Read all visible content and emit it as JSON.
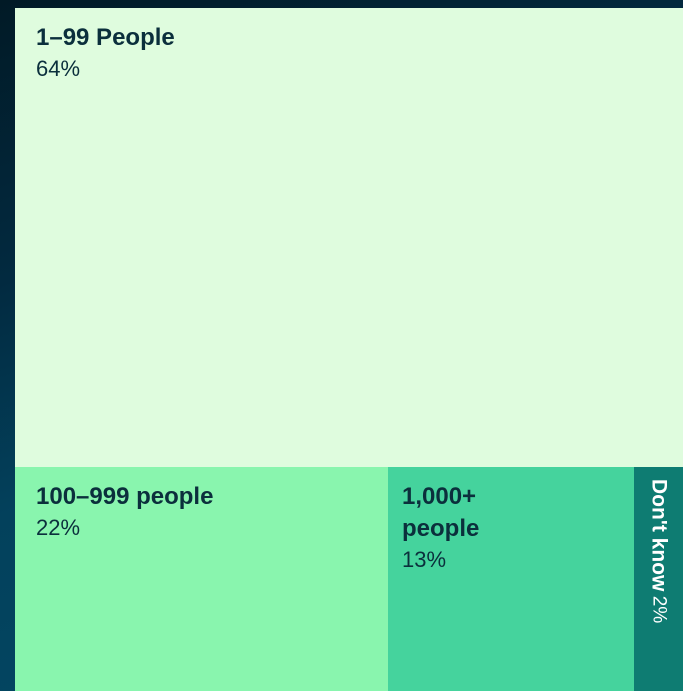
{
  "chart_data": {
    "type": "treemap",
    "colors": [
      "#dffcde",
      "#89f5ae",
      "#45d39d",
      "#0e7c72"
    ],
    "items": [
      {
        "label": "1–99 People",
        "value": 64,
        "value_label": "64%"
      },
      {
        "label": "100–999 people",
        "value": 22,
        "value_label": "22%"
      },
      {
        "label": "1,000+ people",
        "value": 13,
        "value_label": "13%"
      },
      {
        "label": "Don't know",
        "value": 2,
        "value_label": "2%"
      }
    ]
  }
}
